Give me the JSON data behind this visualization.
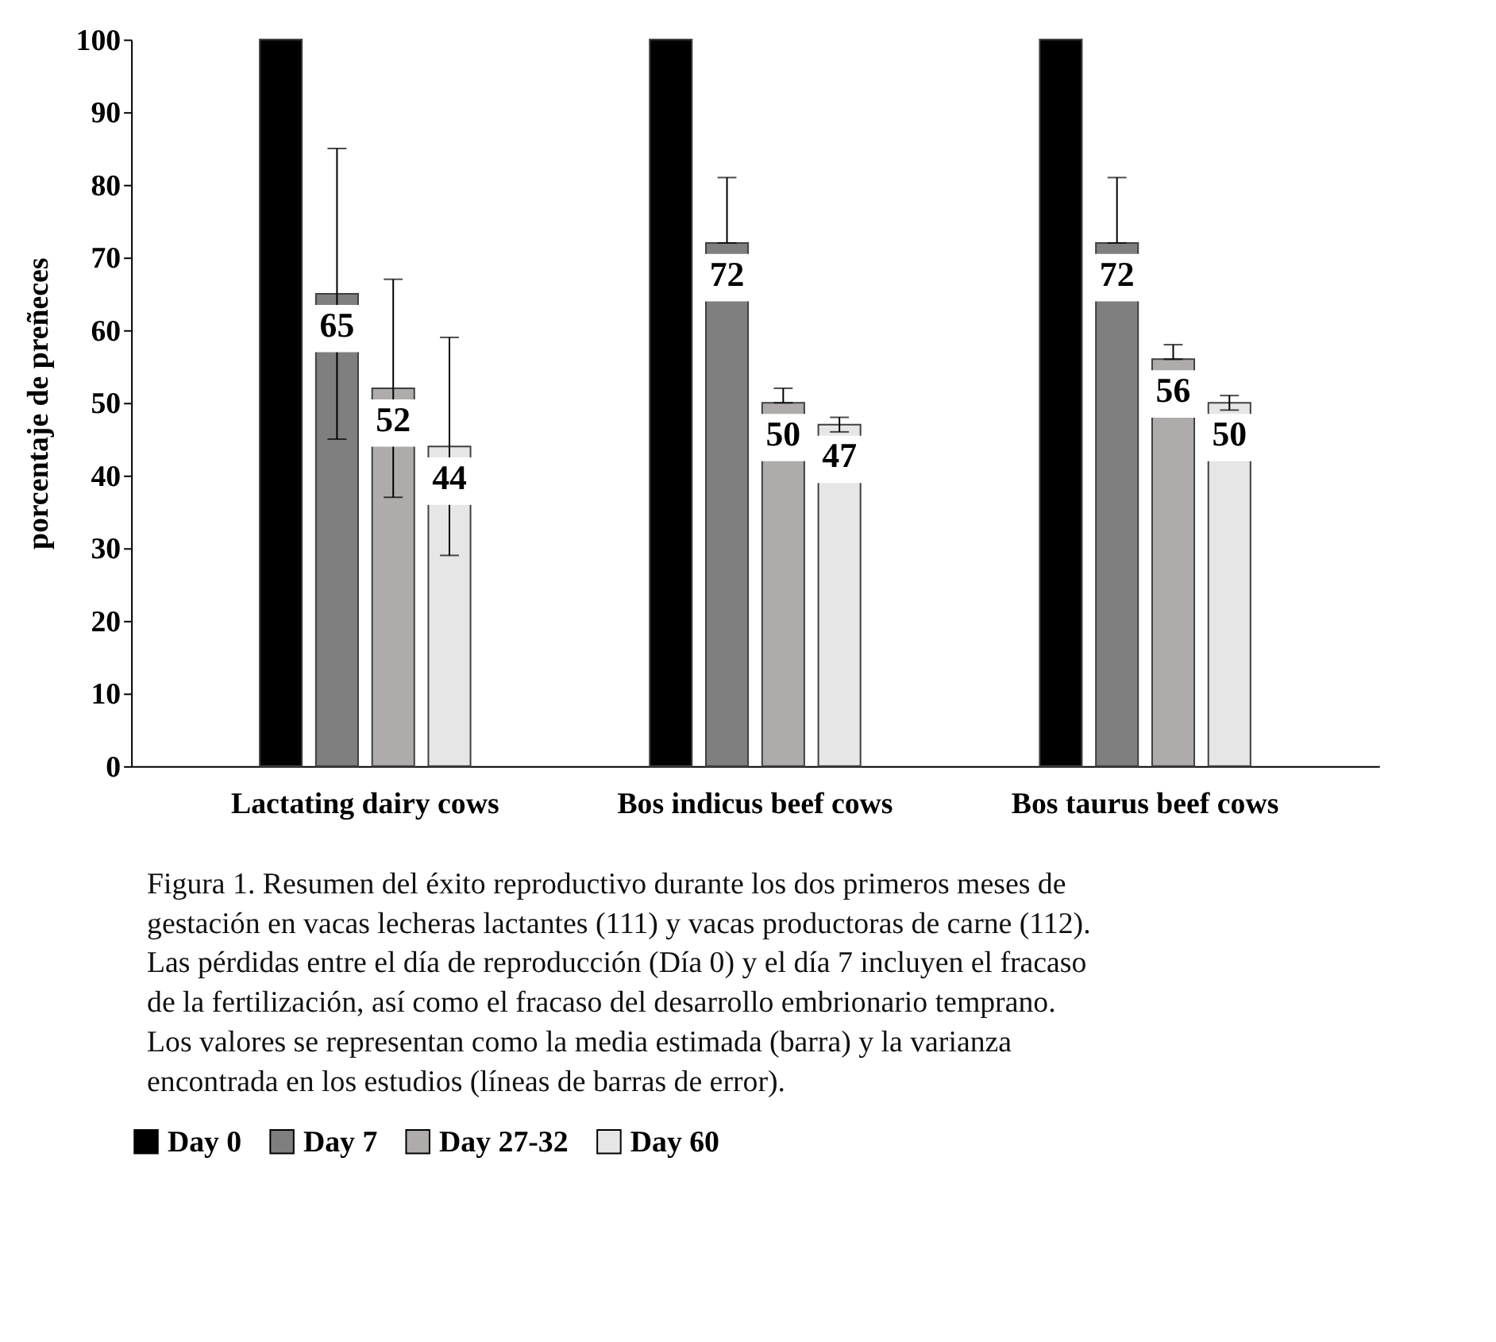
{
  "chart_data": {
    "type": "bar",
    "categories": [
      "Lactating dairy cows",
      "Bos indicus beef cows",
      "Bos taurus beef cows"
    ],
    "ylabel": "porcentaje de preñeces",
    "ylim": [
      0,
      100
    ],
    "yticks": [
      0,
      10,
      20,
      30,
      40,
      50,
      60,
      70,
      80,
      90,
      100
    ],
    "grid": false,
    "legend": "bottom",
    "series": [
      {
        "name": "Day 0",
        "color": "#000000",
        "values": [
          100,
          100,
          100
        ],
        "errors": [
          null,
          null,
          null
        ],
        "value_labels": [
          null,
          null,
          null
        ]
      },
      {
        "name": "Day 7",
        "color": "#7f7f7f",
        "values": [
          65,
          72,
          72
        ],
        "errors": [
          [
            45,
            85
          ],
          [
            72,
            81
          ],
          [
            72,
            81
          ]
        ],
        "value_labels": [
          "65",
          "72",
          "72"
        ]
      },
      {
        "name": "Day 27-32",
        "color": "#afabab",
        "values": [
          52,
          50,
          56
        ],
        "errors": [
          [
            37,
            67
          ],
          [
            50,
            52
          ],
          [
            56,
            58
          ]
        ],
        "value_labels": [
          "52",
          "50",
          "56"
        ]
      },
      {
        "name": "Day 60",
        "color": "#e7e6e6",
        "values": [
          44,
          47,
          50
        ],
        "errors": [
          [
            29,
            59
          ],
          [
            46,
            48
          ],
          [
            49,
            51
          ]
        ],
        "value_labels": [
          "44",
          "47",
          "50"
        ]
      }
    ],
    "annotations": [
      "Figura 1. Resumen del éxito reproductivo durante los dos primeros meses de gestación en vacas lecheras lactantes (111) y vacas productoras de carne (112). Las pérdidas entre el día de reproducción (Día 0) y el día 7 incluyen el fracaso de la fertilización, así como el fracaso del desarrollo embrionario temprano. Los valores se representan como la media estimada (barra) y la varianza encontrada en los estudios (líneas de barras de error)."
    ]
  }
}
